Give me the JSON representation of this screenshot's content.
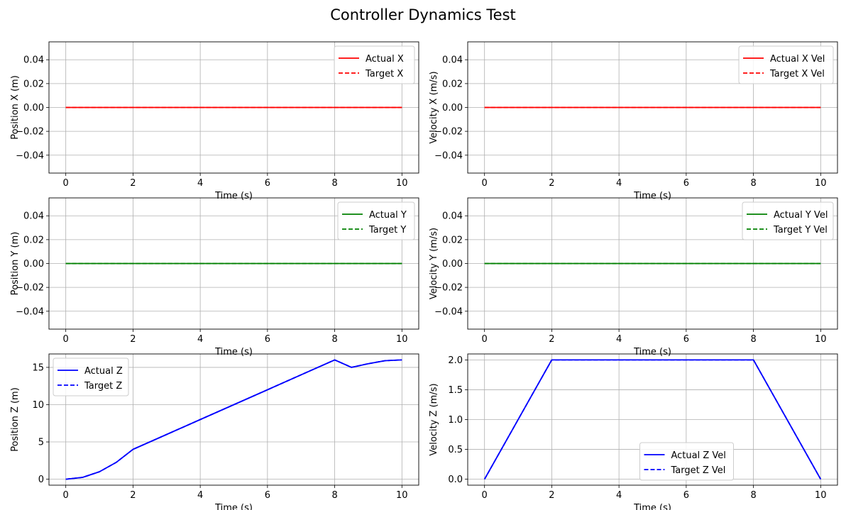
{
  "figure": {
    "title": "Controller Dynamics Test"
  },
  "chart_data": [
    {
      "type": "line",
      "xlabel": "Time (s)",
      "ylabel": "Position X (m)",
      "xlim": [
        -0.5,
        10.5
      ],
      "ylim": [
        -0.055,
        0.055
      ],
      "xticks": [
        0,
        2,
        4,
        6,
        8,
        10
      ],
      "yticks": [
        -0.04,
        -0.02,
        0.0,
        0.02,
        0.04
      ],
      "ytick_labels": [
        "−0.04",
        "−0.02",
        "0.00",
        "0.02",
        "0.04"
      ],
      "grid": true,
      "legend": "top-right",
      "x": [
        0,
        10
      ],
      "series": [
        {
          "name": "Actual X",
          "color": "#ff0000",
          "dash": false,
          "values": [
            0,
            0
          ]
        },
        {
          "name": "Target X",
          "color": "#ff0000",
          "dash": true,
          "values": [
            0,
            0
          ]
        }
      ]
    },
    {
      "type": "line",
      "xlabel": "Time (s)",
      "ylabel": "Velocity X (m/s)",
      "xlim": [
        -0.5,
        10.5
      ],
      "ylim": [
        -0.055,
        0.055
      ],
      "xticks": [
        0,
        2,
        4,
        6,
        8,
        10
      ],
      "yticks": [
        -0.04,
        -0.02,
        0.0,
        0.02,
        0.04
      ],
      "ytick_labels": [
        "−0.04",
        "−0.02",
        "0.00",
        "0.02",
        "0.04"
      ],
      "grid": true,
      "legend": "top-right",
      "x": [
        0,
        10
      ],
      "series": [
        {
          "name": "Actual X Vel",
          "color": "#ff0000",
          "dash": false,
          "values": [
            0,
            0
          ]
        },
        {
          "name": "Target X Vel",
          "color": "#ff0000",
          "dash": true,
          "values": [
            0,
            0
          ]
        }
      ]
    },
    {
      "type": "line",
      "xlabel": "Time (s)",
      "ylabel": "Position Y (m)",
      "xlim": [
        -0.5,
        10.5
      ],
      "ylim": [
        -0.055,
        0.055
      ],
      "xticks": [
        0,
        2,
        4,
        6,
        8,
        10
      ],
      "yticks": [
        -0.04,
        -0.02,
        0.0,
        0.02,
        0.04
      ],
      "ytick_labels": [
        "−0.04",
        "−0.02",
        "0.00",
        "0.02",
        "0.04"
      ],
      "grid": true,
      "legend": "top-right",
      "x": [
        0,
        10
      ],
      "series": [
        {
          "name": "Actual Y",
          "color": "#008000",
          "dash": false,
          "values": [
            0,
            0
          ]
        },
        {
          "name": "Target Y",
          "color": "#008000",
          "dash": true,
          "values": [
            0,
            0
          ]
        }
      ]
    },
    {
      "type": "line",
      "xlabel": "Time (s)",
      "ylabel": "Velocity Y (m/s)",
      "xlim": [
        -0.5,
        10.5
      ],
      "ylim": [
        -0.055,
        0.055
      ],
      "xticks": [
        0,
        2,
        4,
        6,
        8,
        10
      ],
      "yticks": [
        -0.04,
        -0.02,
        0.0,
        0.02,
        0.04
      ],
      "ytick_labels": [
        "−0.04",
        "−0.02",
        "0.00",
        "0.02",
        "0.04"
      ],
      "grid": true,
      "legend": "top-right",
      "x": [
        0,
        10
      ],
      "series": [
        {
          "name": "Actual Y Vel",
          "color": "#008000",
          "dash": false,
          "values": [
            0,
            0
          ]
        },
        {
          "name": "Target Y Vel",
          "color": "#008000",
          "dash": true,
          "values": [
            0,
            0
          ]
        }
      ]
    },
    {
      "type": "line",
      "xlabel": "Time (s)",
      "ylabel": "Position Z (m)",
      "xlim": [
        -0.5,
        10.5
      ],
      "ylim": [
        -0.8,
        16.8
      ],
      "xticks": [
        0,
        2,
        4,
        6,
        8,
        10
      ],
      "yticks": [
        0,
        5,
        10,
        15
      ],
      "ytick_labels": [
        "0",
        "5",
        "10",
        "15"
      ],
      "grid": true,
      "legend": "top-left",
      "x": [
        0,
        0.5,
        1,
        1.5,
        2,
        3,
        4,
        5,
        6,
        7,
        8,
        8.5,
        9,
        9.5,
        10
      ],
      "series": [
        {
          "name": "Actual Z",
          "color": "#0000ff",
          "dash": false,
          "values": [
            0,
            0.25,
            1.0,
            2.25,
            4.0,
            6.0,
            8.0,
            10.0,
            12.0,
            14.0,
            16.0,
            15.0,
            15.5,
            15.9,
            16.0
          ]
        },
        {
          "name": "Target Z",
          "color": "#0000ff",
          "dash": true,
          "values": [
            0,
            0.25,
            1.0,
            2.25,
            4.0,
            6.0,
            8.0,
            10.0,
            12.0,
            14.0,
            16.0,
            15.0,
            15.5,
            15.9,
            16.0
          ]
        }
      ]
    },
    {
      "type": "line",
      "xlabel": "Time (s)",
      "ylabel": "Velocity Z (m/s)",
      "xlim": [
        -0.5,
        10.5
      ],
      "ylim": [
        -0.1,
        2.1
      ],
      "xticks": [
        0,
        2,
        4,
        6,
        8,
        10
      ],
      "yticks": [
        0.0,
        0.5,
        1.0,
        1.5,
        2.0
      ],
      "ytick_labels": [
        "0.0",
        "0.5",
        "1.0",
        "1.5",
        "2.0"
      ],
      "grid": true,
      "legend": "lower-center",
      "x": [
        0,
        2,
        8,
        10
      ],
      "series": [
        {
          "name": "Actual Z Vel",
          "color": "#0000ff",
          "dash": false,
          "values": [
            0,
            2.0,
            2.0,
            0
          ]
        },
        {
          "name": "Target Z Vel",
          "color": "#0000ff",
          "dash": true,
          "values": [
            0,
            2.0,
            2.0,
            0
          ]
        }
      ]
    }
  ]
}
